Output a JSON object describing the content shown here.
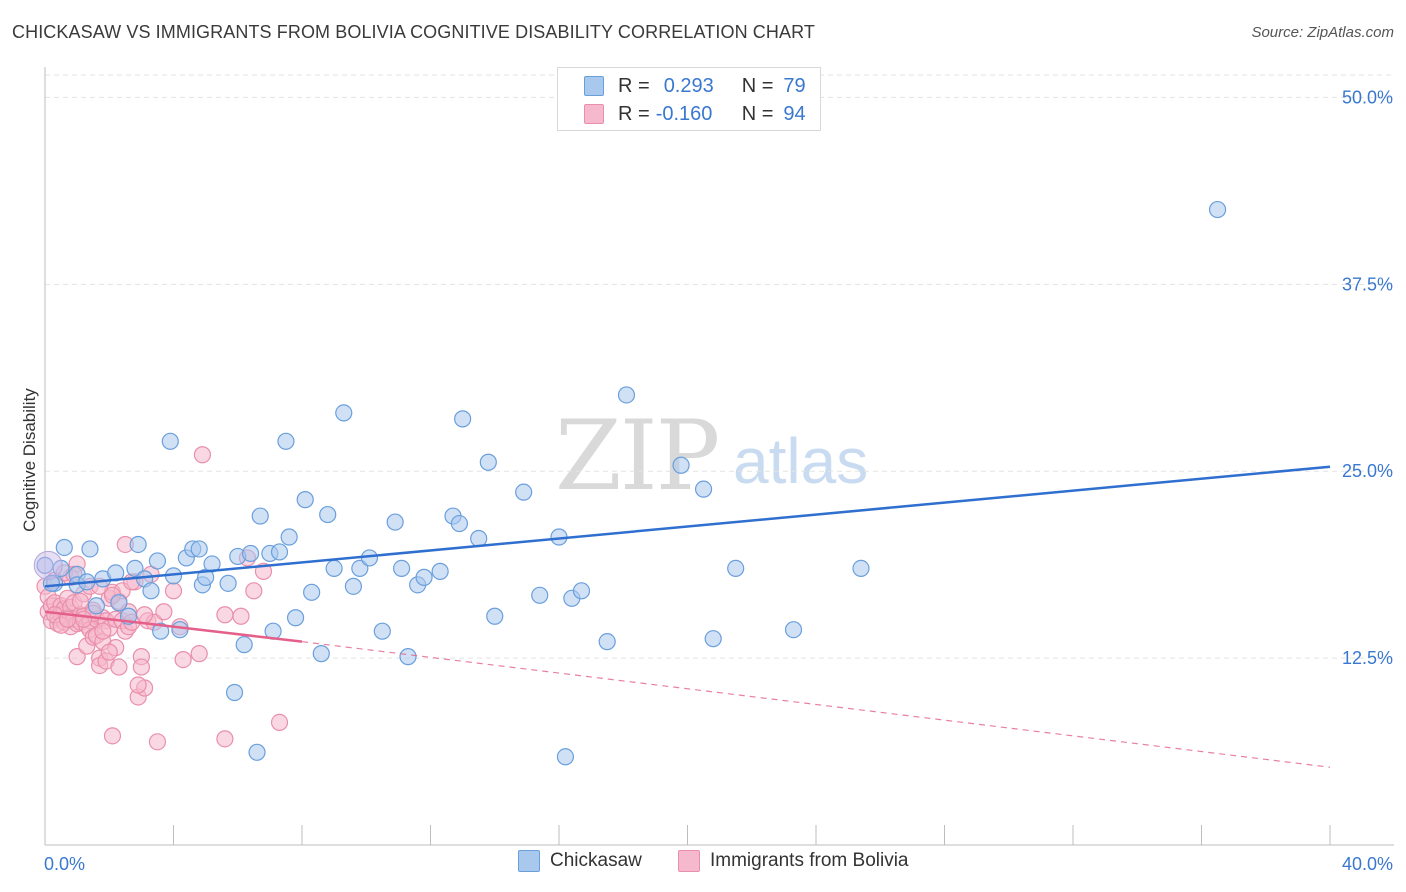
{
  "header": {
    "title": "CHICKASAW VS IMMIGRANTS FROM BOLIVIA COGNITIVE DISABILITY CORRELATION CHART",
    "source": "Source: ZipAtlas.com"
  },
  "watermark": {
    "zip": "ZIP",
    "atlas": "atlas"
  },
  "legend_top": {
    "rows": [
      {
        "r_label": "R =",
        "r_value": "0.293",
        "n_label": "N =",
        "n_value": "79"
      },
      {
        "r_label": "R =",
        "r_value": "-0.160",
        "n_label": "N =",
        "n_value": "94"
      }
    ]
  },
  "legend_bottom": {
    "items": [
      {
        "label": "Chickasaw"
      },
      {
        "label": "Immigrants from Bolivia"
      }
    ]
  },
  "colors": {
    "blue_fill": "#a9c8ee",
    "blue_stroke": "#6a9fdc",
    "blue_line": "#2f6fcf",
    "pink_fill": "#f6b8cc",
    "pink_stroke": "#e98fab",
    "pink_line": "#e4608a",
    "tick_label": "#3a78d0",
    "grid": "#e3e3e3"
  },
  "chart_data": {
    "type": "scatter",
    "title": "CHICKASAW VS IMMIGRANTS FROM BOLIVIA COGNITIVE DISABILITY CORRELATION CHART",
    "xlabel": "",
    "ylabel": "Cognitive Disability",
    "xlim": [
      0,
      40
    ],
    "ylim": [
      0,
      51.5
    ],
    "x_tick_labels": [
      "0.0%",
      "40.0%"
    ],
    "y_ticks": [
      12.5,
      25.0,
      37.5,
      50.0
    ],
    "y_tick_labels": [
      "12.5%",
      "25.0%",
      "37.5%",
      "50.0%"
    ],
    "grid": true,
    "legend": "top-center",
    "series": [
      {
        "name": "Chickasaw",
        "r": 0.293,
        "n": 79,
        "trend": {
          "x0": 0,
          "y0": 17.3,
          "x1": 40,
          "y1": 25.3
        },
        "points": [
          [
            0.0,
            18.7
          ],
          [
            0.3,
            17.5
          ],
          [
            0.5,
            18.5
          ],
          [
            0.6,
            19.9
          ],
          [
            1.0,
            18.1
          ],
          [
            1.0,
            17.4
          ],
          [
            1.4,
            19.8
          ],
          [
            1.6,
            16.0
          ],
          [
            1.8,
            17.8
          ],
          [
            2.2,
            18.2
          ],
          [
            2.3,
            16.2
          ],
          [
            2.6,
            15.3
          ],
          [
            2.8,
            18.5
          ],
          [
            2.9,
            20.1
          ],
          [
            3.1,
            17.8
          ],
          [
            3.3,
            17.0
          ],
          [
            3.5,
            19.0
          ],
          [
            3.6,
            14.3
          ],
          [
            3.9,
            27.0
          ],
          [
            4.0,
            18.0
          ],
          [
            4.2,
            14.4
          ],
          [
            4.4,
            19.2
          ],
          [
            4.6,
            19.8
          ],
          [
            4.8,
            19.8
          ],
          [
            4.9,
            17.4
          ],
          [
            5.0,
            17.9
          ],
          [
            5.2,
            18.8
          ],
          [
            5.7,
            17.5
          ],
          [
            5.9,
            10.2
          ],
          [
            6.0,
            19.3
          ],
          [
            6.2,
            13.4
          ],
          [
            6.4,
            19.5
          ],
          [
            6.6,
            6.2
          ],
          [
            6.7,
            22.0
          ],
          [
            7.0,
            19.5
          ],
          [
            7.1,
            14.3
          ],
          [
            7.3,
            19.6
          ],
          [
            7.5,
            27.0
          ],
          [
            7.6,
            20.6
          ],
          [
            7.8,
            15.2
          ],
          [
            8.1,
            23.1
          ],
          [
            8.3,
            16.9
          ],
          [
            8.6,
            12.8
          ],
          [
            8.8,
            22.1
          ],
          [
            9.0,
            18.5
          ],
          [
            9.3,
            28.9
          ],
          [
            9.6,
            17.3
          ],
          [
            9.8,
            18.5
          ],
          [
            10.1,
            19.2
          ],
          [
            10.5,
            14.3
          ],
          [
            10.9,
            21.6
          ],
          [
            11.1,
            18.5
          ],
          [
            11.3,
            12.6
          ],
          [
            11.6,
            17.4
          ],
          [
            11.8,
            17.9
          ],
          [
            12.3,
            18.3
          ],
          [
            12.7,
            22.0
          ],
          [
            12.9,
            21.5
          ],
          [
            13.0,
            28.5
          ],
          [
            13.5,
            20.5
          ],
          [
            13.8,
            25.6
          ],
          [
            14.0,
            15.3
          ],
          [
            14.9,
            23.6
          ],
          [
            15.4,
            16.7
          ],
          [
            16.0,
            20.6
          ],
          [
            16.4,
            16.5
          ],
          [
            16.7,
            17.0
          ],
          [
            16.2,
            5.9
          ],
          [
            17.5,
            13.6
          ],
          [
            18.1,
            30.1
          ],
          [
            19.8,
            25.4
          ],
          [
            20.5,
            23.8
          ],
          [
            20.8,
            13.8
          ],
          [
            21.5,
            18.5
          ],
          [
            23.3,
            14.4
          ],
          [
            25.4,
            18.5
          ],
          [
            36.5,
            42.5
          ],
          [
            0.2,
            17.5
          ],
          [
            1.3,
            17.6
          ]
        ]
      },
      {
        "name": "Immigrants from Bolivia",
        "r": -0.16,
        "n": 94,
        "trend": {
          "x0": 0,
          "y0": 15.6,
          "x1": 8,
          "y1": 13.6
        },
        "trend_dashed": {
          "x0": 8,
          "y0": 13.6,
          "x1": 40,
          "y1": 5.2
        },
        "points": [
          [
            0.0,
            17.3
          ],
          [
            0.1,
            16.6
          ],
          [
            0.1,
            15.6
          ],
          [
            0.2,
            15.0
          ],
          [
            0.2,
            16.0
          ],
          [
            0.3,
            17.7
          ],
          [
            0.3,
            16.2
          ],
          [
            0.4,
            15.2
          ],
          [
            0.4,
            14.8
          ],
          [
            0.5,
            16.0
          ],
          [
            0.5,
            15.4
          ],
          [
            0.6,
            15.8
          ],
          [
            0.6,
            14.9
          ],
          [
            0.7,
            16.5
          ],
          [
            0.7,
            15.2
          ],
          [
            0.8,
            14.6
          ],
          [
            0.8,
            15.9
          ],
          [
            0.9,
            16.2
          ],
          [
            0.9,
            15.1
          ],
          [
            1.0,
            14.8
          ],
          [
            1.0,
            12.6
          ],
          [
            1.1,
            15.4
          ],
          [
            1.1,
            14.9
          ],
          [
            1.2,
            15.3
          ],
          [
            1.2,
            16.8
          ],
          [
            1.3,
            14.7
          ],
          [
            1.3,
            13.3
          ],
          [
            1.4,
            15.0
          ],
          [
            1.4,
            14.4
          ],
          [
            1.5,
            15.7
          ],
          [
            1.5,
            13.9
          ],
          [
            1.6,
            15.1
          ],
          [
            1.6,
            14.0
          ],
          [
            1.7,
            12.5
          ],
          [
            1.7,
            12.0
          ],
          [
            1.8,
            15.2
          ],
          [
            1.8,
            13.6
          ],
          [
            1.9,
            15.0
          ],
          [
            1.9,
            12.3
          ],
          [
            2.0,
            14.5
          ],
          [
            2.0,
            16.5
          ],
          [
            2.1,
            16.9
          ],
          [
            2.1,
            7.3
          ],
          [
            2.2,
            15.1
          ],
          [
            2.2,
            13.2
          ],
          [
            2.3,
            16.3
          ],
          [
            2.4,
            17.0
          ],
          [
            2.4,
            15.0
          ],
          [
            2.5,
            20.1
          ],
          [
            2.5,
            14.3
          ],
          [
            2.6,
            15.6
          ],
          [
            2.6,
            14.6
          ],
          [
            2.7,
            14.9
          ],
          [
            2.8,
            17.6
          ],
          [
            2.9,
            9.9
          ],
          [
            3.0,
            12.6
          ],
          [
            3.0,
            11.9
          ],
          [
            3.1,
            10.5
          ],
          [
            3.2,
            15.0
          ],
          [
            3.3,
            18.1
          ],
          [
            3.4,
            14.9
          ],
          [
            3.5,
            6.9
          ],
          [
            3.7,
            15.6
          ],
          [
            4.0,
            17.0
          ],
          [
            4.2,
            14.6
          ],
          [
            4.3,
            12.4
          ],
          [
            4.8,
            12.8
          ],
          [
            4.9,
            26.1
          ],
          [
            5.6,
            15.4
          ],
          [
            5.6,
            7.1
          ],
          [
            6.1,
            15.3
          ],
          [
            6.3,
            19.2
          ],
          [
            6.5,
            17.0
          ],
          [
            6.8,
            18.3
          ],
          [
            7.3,
            8.2
          ],
          [
            1.0,
            18.8
          ],
          [
            0.8,
            17.9
          ],
          [
            0.6,
            18.2
          ],
          [
            1.4,
            17.3
          ],
          [
            1.8,
            14.3
          ],
          [
            2.3,
            11.9
          ],
          [
            1.5,
            15.5
          ],
          [
            0.9,
            18.1
          ],
          [
            1.2,
            15.1
          ],
          [
            0.3,
            15.4
          ],
          [
            0.5,
            14.7
          ],
          [
            2.1,
            16.7
          ],
          [
            2.7,
            17.6
          ],
          [
            3.1,
            15.4
          ],
          [
            2.0,
            12.9
          ],
          [
            1.7,
            17.3
          ],
          [
            2.9,
            10.7
          ],
          [
            1.1,
            16.3
          ],
          [
            0.7,
            15.1
          ]
        ]
      }
    ]
  }
}
